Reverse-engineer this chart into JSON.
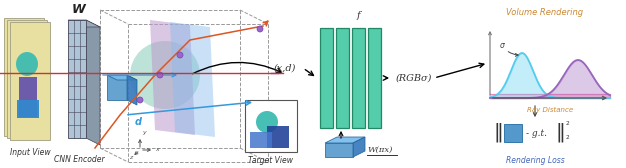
{
  "bg_color": "#ffffff",
  "input_view_label": "Input View",
  "cnn_encoder_label": "CNN Encoder",
  "target_view_label": "Target View",
  "volume_rendering_label": "Volume Rendering",
  "rendering_loss_label": "Rendering Loss",
  "ray_distance_label": "Ray Distance",
  "W_label": "W",
  "f_label": "f",
  "xd_label": "(x,d)",
  "RGBs_label": "(RGBσ)",
  "Wpi_label": "W(πx)",
  "d_label": "d",
  "sigma_label": "σ",
  "gt_label": "- g.t.",
  "input_view_color": "#e8e0a0",
  "grid_face_color": "#b0c4d8",
  "grid_edge_color": "#444455",
  "sphere_color": "#88ccbb",
  "purple_plane_color": "#bb99cc",
  "blue_plane_color": "#88bbee",
  "cube_front_color": "#5599cc",
  "cube_top_color": "#77bbee",
  "cube_right_color": "#3377bb",
  "ray_color": "#dd5522",
  "blue_ray_color": "#3399dd",
  "dot_color": "#9966cc",
  "mlp_fill": "#55ccaa",
  "mlp_edge": "#228866",
  "wpi_front": "#5599cc",
  "wpi_top": "#77bbee",
  "wpi_right": "#3377bb",
  "cyan_gauss": "#55ccee",
  "purple_gauss": "#9966bb",
  "pink_base": "#ffaacc",
  "loss_box_color": "#5599cc",
  "loss_box_edge": "#3377aa",
  "vr_title_color": "#cc8833",
  "loss_title_color": "#4466bb",
  "label_color": "#333333",
  "arrow_color": "#222222",
  "axis_color": "#666666"
}
